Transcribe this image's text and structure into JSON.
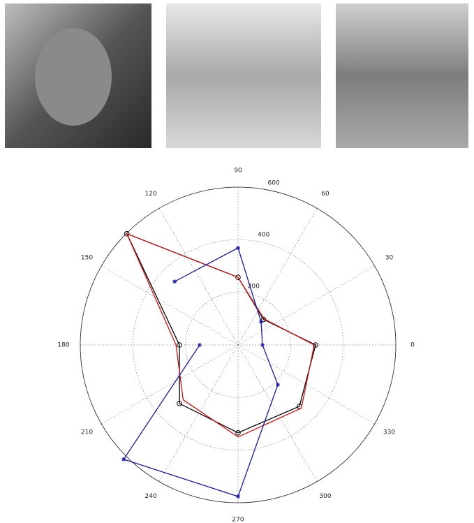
{
  "chart_data": {
    "type": "polar",
    "rlim": [
      0,
      600
    ],
    "rticks": [
      200,
      400,
      600
    ],
    "thetaticks": [
      0,
      30,
      60,
      90,
      120,
      150,
      180,
      210,
      240,
      270,
      300,
      330
    ],
    "grid": true,
    "series": [
      {
        "color": "#000000",
        "marker": "circle",
        "closed": true,
        "theta": [
          0,
          45,
          90,
          135,
          180,
          225,
          270,
          315
        ],
        "values": [
          295,
          137,
          257,
          598,
          223,
          315,
          334,
          330
        ]
      },
      {
        "color": "#d01010",
        "marker": "none",
        "closed": true,
        "theta": [
          0,
          45,
          90,
          135,
          180,
          225,
          270,
          315
        ],
        "values": [
          290,
          140,
          257,
          598,
          236,
          295,
          350,
          340
        ]
      },
      {
        "color": "#1a1aa8",
        "marker": "star",
        "closed": false,
        "theta": [
          180,
          225,
          270,
          315,
          0,
          45,
          90,
          135
        ],
        "values": [
          146,
          615,
          576,
          214,
          93,
          124,
          369,
          341
        ]
      }
    ]
  }
}
